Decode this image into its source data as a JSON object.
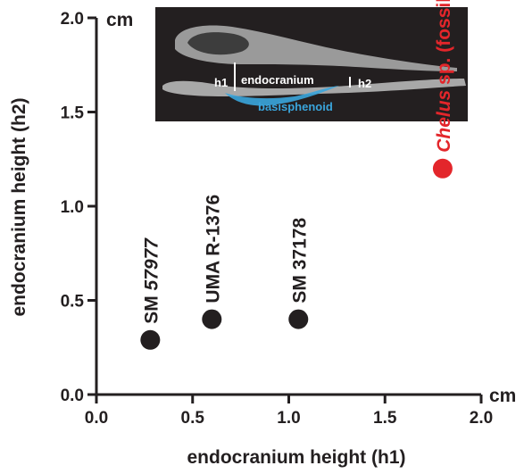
{
  "chart_data": {
    "type": "scatter",
    "xlabel": "endocranium height (h1)",
    "ylabel": "endocranium height (h2)",
    "x_unit": "cm",
    "y_unit": "cm",
    "xlim": [
      0.0,
      2.0
    ],
    "ylim": [
      0.0,
      2.0
    ],
    "x_ticks": [
      "0.0",
      "0.5",
      "1.0",
      "1.5",
      "2.0"
    ],
    "y_ticks": [
      "0.0",
      "0.5",
      "1.0",
      "1.5",
      "2.0"
    ],
    "points": [
      {
        "label_parts": [
          {
            "text": "SM ",
            "italic": false
          },
          {
            "text": "57977",
            "italic": true
          }
        ],
        "x": 0.28,
        "y": 0.29,
        "color": "#231f20"
      },
      {
        "label_parts": [
          {
            "text": "UMA R-1376",
            "italic": false
          }
        ],
        "x": 0.6,
        "y": 0.4,
        "color": "#231f20"
      },
      {
        "label_parts": [
          {
            "text": "SM 37178",
            "italic": false
          }
        ],
        "x": 1.05,
        "y": 0.4,
        "color": "#231f20"
      },
      {
        "label_parts": [
          {
            "text": "Chelus",
            "italic": true
          },
          {
            "text": " sp. (fossil)",
            "italic": false
          }
        ],
        "x": 1.8,
        "y": 1.2,
        "color": "#e3262b"
      }
    ],
    "inset": {
      "labels": {
        "h1": "h1",
        "endocranium": "endocranium",
        "h2": "h2",
        "basisphenoid": "basisphenoid"
      }
    }
  }
}
